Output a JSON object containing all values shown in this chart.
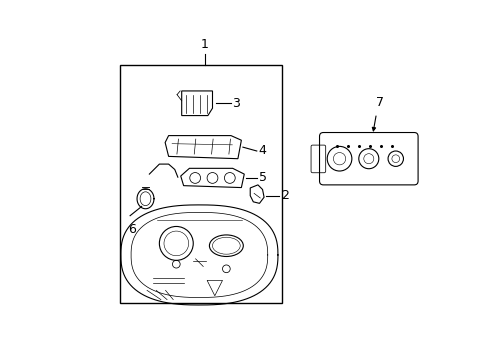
{
  "bg_color": "#ffffff",
  "line_color": "#000000",
  "fig_width": 4.89,
  "fig_height": 3.6,
  "dpi": 100,
  "font_size": 8,
  "lw": 0.8
}
